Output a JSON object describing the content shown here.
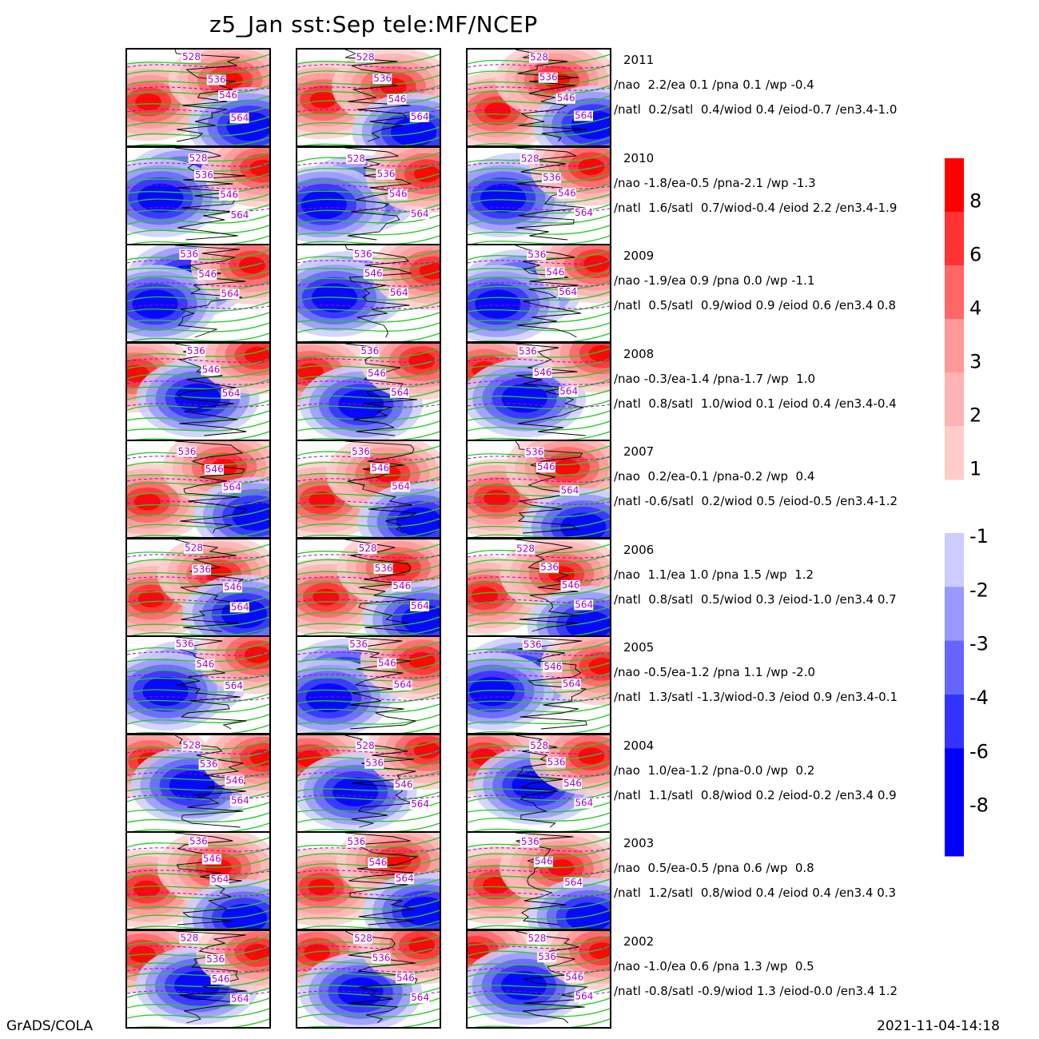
{
  "title": "z5_Jan  sst:Sep  tele:MF/NCEP",
  "footer_left": "GrADS/COLA",
  "footer_right": "2021-11-04-14:18",
  "colors": {
    "pos": [
      "#ffcccc",
      "#ffb3b3",
      "#ff9999",
      "#ff6666",
      "#ff3333",
      "#ff0000"
    ],
    "neg": [
      "#ccccff",
      "#9999ff",
      "#6666ff",
      "#3333ff",
      "#0000ff"
    ],
    "contour": "#22cc22",
    "dashed": "#aa00cc",
    "label": "#aa00cc"
  },
  "chart_data": {
    "type": "heatmap",
    "title": "z5_Jan  sst:Sep  tele:MF/NCEP",
    "colorbar_positive": {
      "ticks": [
        "8",
        "6",
        "4",
        "3",
        "2",
        "1"
      ]
    },
    "colorbar_negative": {
      "ticks": [
        "-1",
        "-2",
        "-3",
        "-4",
        "-6",
        "-8"
      ]
    },
    "rows": [
      {
        "year": "2011",
        "line1": "/nao  2.2/ea 0.1 /pna 0.1 /wp -0.4",
        "line2": "/natl  0.2/satl  0.4/wiod 0.4 /eiod-0.7 /en3.4-1.0",
        "labels": [
          "528",
          "536",
          "546",
          "564"
        ]
      },
      {
        "year": "2010",
        "line1": "/nao -1.8/ea-0.5 /pna-2.1 /wp -1.3",
        "line2": "/natl  1.6/satl  0.7/wiod-0.4 /eiod 2.2 /en3.4-1.9",
        "labels": [
          "528",
          "536",
          "546",
          "564"
        ]
      },
      {
        "year": "2009",
        "line1": "/nao -1.9/ea 0.9 /pna 0.0 /wp -1.1",
        "line2": "/natl  0.5/satl  0.9/wiod 0.9 /eiod 0.6 /en3.4 0.8",
        "labels": [
          "536",
          "546",
          "564"
        ]
      },
      {
        "year": "2008",
        "line1": "/nao -0.3/ea-1.4 /pna-1.7 /wp  1.0",
        "line2": "/natl  0.8/satl  1.0/wiod 0.1 /eiod 0.4 /en3.4-0.4",
        "labels": [
          "536",
          "546",
          "564"
        ]
      },
      {
        "year": "2007",
        "line1": "/nao  0.2/ea-0.1 /pna-0.2 /wp  0.4",
        "line2": "/natl -0.6/satl  0.2/wiod 0.5 /eiod-0.5 /en3.4-1.2",
        "labels": [
          "536",
          "546",
          "564"
        ]
      },
      {
        "year": "2006",
        "line1": "/nao  1.1/ea 1.0 /pna 1.5 /wp  1.2",
        "line2": "/natl  0.8/satl  0.5/wiod 0.3 /eiod-1.0 /en3.4 0.7",
        "labels": [
          "528",
          "536",
          "546",
          "564"
        ]
      },
      {
        "year": "2005",
        "line1": "/nao -0.5/ea-1.2 /pna 1.1 /wp -2.0",
        "line2": "/natl  1.3/satl -1.3/wiod-0.3 /eiod 0.9 /en3.4-0.1",
        "labels": [
          "536",
          "546",
          "564"
        ]
      },
      {
        "year": "2004",
        "line1": "/nao  1.0/ea-1.2 /pna-0.0 /wp  0.2",
        "line2": "/natl  1.1/satl  0.8/wiod 0.2 /eiod-0.2 /en3.4 0.9",
        "labels": [
          "528",
          "536",
          "546",
          "564"
        ]
      },
      {
        "year": "2003",
        "line1": "/nao  0.5/ea-0.5 /pna 0.6 /wp  0.8",
        "line2": "/natl  1.2/satl  0.8/wiod 0.4 /eiod 0.4 /en3.4 0.3",
        "labels": [
          "536",
          "546",
          "564"
        ]
      },
      {
        "year": "2002",
        "line1": "/nao -1.0/ea 0.6 /pna 1.3 /wp  0.5",
        "line2": "/natl -0.8/satl -0.9/wiod 1.3 /eiod-0.0 /en3.4 1.2",
        "labels": [
          "528",
          "536",
          "546",
          "564"
        ]
      }
    ],
    "anomaly_sign": [
      [
        "pos",
        "pos",
        "pos"
      ],
      [
        "neg",
        "neg",
        "neg"
      ],
      [
        "neg",
        "neg",
        "neg"
      ],
      [
        "mix",
        "mix",
        "mix"
      ],
      [
        "pos",
        "pos",
        "pos"
      ],
      [
        "pos",
        "pos",
        "pos"
      ],
      [
        "neg",
        "neg",
        "neg"
      ],
      [
        "mix",
        "mix",
        "mix"
      ],
      [
        "pos",
        "pos",
        "pos"
      ],
      [
        "mix",
        "mix",
        "mix"
      ]
    ]
  }
}
